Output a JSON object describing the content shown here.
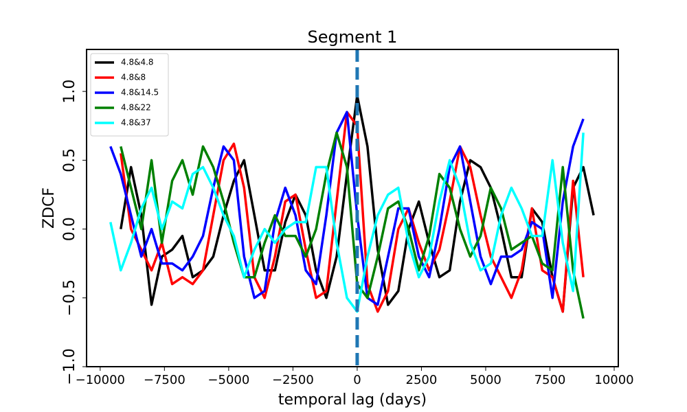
{
  "chart_data": {
    "type": "line",
    "title": "Segment 1",
    "xlabel": "temporal lag (days)",
    "ylabel": "ZDCF",
    "x": [
      -9600,
      -9200,
      -8800,
      -8400,
      -8000,
      -7600,
      -7200,
      -6800,
      -6400,
      -6000,
      -5600,
      -5200,
      -4800,
      -4400,
      -4000,
      -3600,
      -3200,
      -2800,
      -2400,
      -2000,
      -1600,
      -1200,
      -800,
      -400,
      0,
      400,
      800,
      1200,
      1600,
      2000,
      2400,
      2800,
      3200,
      3600,
      4000,
      4400,
      4800,
      5200,
      5600,
      6000,
      6400,
      6800,
      7200,
      7600,
      8000,
      8400,
      8800,
      9200
    ],
    "series": [
      {
        "name": "4.8&4.8",
        "color": "#000000",
        "values": [
          null,
          0.0,
          0.45,
          0.1,
          -0.55,
          -0.2,
          -0.15,
          -0.05,
          -0.35,
          -0.3,
          -0.2,
          0.1,
          0.35,
          0.5,
          0.1,
          -0.3,
          -0.3,
          0.05,
          0.25,
          0.1,
          -0.3,
          -0.5,
          -0.2,
          0.4,
          0.97,
          0.6,
          -0.15,
          -0.55,
          -0.45,
          0.0,
          0.2,
          -0.1,
          -0.35,
          -0.3,
          0.2,
          0.5,
          0.45,
          0.3,
          0.0,
          -0.35,
          -0.35,
          0.15,
          0.05,
          -0.35,
          -0.6,
          0.3,
          0.45,
          0.1
        ]
      },
      {
        "name": "4.8&8",
        "color": "#ff0000",
        "values": [
          null,
          0.55,
          0.0,
          -0.15,
          -0.3,
          -0.1,
          -0.4,
          -0.35,
          -0.4,
          -0.3,
          0.1,
          0.5,
          0.62,
          0.3,
          -0.35,
          -0.5,
          -0.2,
          0.2,
          0.25,
          -0.15,
          -0.5,
          -0.45,
          0.2,
          0.85,
          0.75,
          -0.4,
          -0.6,
          -0.45,
          0.0,
          0.15,
          -0.1,
          -0.3,
          -0.15,
          0.2,
          0.6,
          0.45,
          0.1,
          -0.2,
          -0.35,
          -0.5,
          -0.3,
          0.15,
          -0.3,
          -0.35,
          -0.6,
          0.35,
          -0.35,
          null
        ]
      },
      {
        "name": "4.8&14.5",
        "color": "#0000ff",
        "values": [
          0.6,
          0.4,
          0.1,
          -0.2,
          0.0,
          -0.25,
          -0.25,
          -0.3,
          -0.2,
          -0.05,
          0.3,
          0.6,
          0.5,
          -0.2,
          -0.5,
          -0.45,
          0.05,
          0.3,
          0.1,
          -0.3,
          -0.4,
          0.1,
          0.7,
          0.85,
          0.1,
          -0.5,
          -0.55,
          -0.2,
          0.15,
          0.15,
          -0.2,
          -0.35,
          0.0,
          0.45,
          0.6,
          0.2,
          -0.2,
          -0.4,
          -0.2,
          -0.2,
          -0.15,
          0.05,
          0.0,
          -0.5,
          0.2,
          0.6,
          0.8,
          null
        ]
      },
      {
        "name": "4.8&22",
        "color": "#008000",
        "values": [
          null,
          0.6,
          0.3,
          0.0,
          0.5,
          -0.1,
          0.35,
          0.5,
          0.25,
          0.6,
          0.45,
          0.2,
          -0.1,
          -0.35,
          -0.35,
          -0.1,
          0.1,
          -0.05,
          -0.05,
          -0.2,
          0.0,
          0.4,
          0.7,
          0.45,
          -0.4,
          -0.5,
          -0.2,
          0.15,
          0.2,
          0.0,
          -0.3,
          -0.05,
          0.4,
          0.3,
          0.0,
          -0.2,
          -0.05,
          0.3,
          0.15,
          -0.15,
          -0.1,
          -0.05,
          -0.25,
          -0.3,
          0.45,
          -0.3,
          -0.65,
          null
        ]
      },
      {
        "name": "4.8&37",
        "color": "#00ffff",
        "values": [
          0.05,
          -0.3,
          -0.1,
          0.15,
          0.3,
          0.0,
          0.2,
          0.15,
          0.4,
          0.45,
          0.3,
          0.1,
          -0.05,
          -0.35,
          -0.15,
          0.0,
          -0.1,
          0.0,
          0.05,
          0.05,
          0.45,
          0.45,
          -0.1,
          -0.5,
          -0.6,
          -0.2,
          0.1,
          0.25,
          0.3,
          -0.1,
          -0.35,
          -0.2,
          0.2,
          0.5,
          0.3,
          -0.1,
          -0.3,
          -0.25,
          0.1,
          0.3,
          0.15,
          -0.05,
          -0.05,
          0.5,
          -0.1,
          -0.45,
          0.7,
          null
        ]
      }
    ],
    "vline": 0,
    "vline_color": "#1f77b4",
    "xlim": [
      -10530,
      10160
    ],
    "ylim": [
      -1.0,
      1.305
    ],
    "xticks": [
      {
        "value": -10000,
        "label": "−10000"
      },
      {
        "value": -7500,
        "label": "−7500"
      },
      {
        "value": -5000,
        "label": "−5000"
      },
      {
        "value": -2500,
        "label": "−2500"
      },
      0,
      2500,
      5000,
      7500,
      10000
    ],
    "yticks": [
      {
        "value": -1.0,
        "label": "−1.0"
      },
      {
        "value": -0.5,
        "label": "−0.5"
      },
      {
        "value": 0,
        "label": "0.0"
      },
      {
        "value": 0.5,
        "label": "0.5"
      },
      {
        "value": 1.0,
        "label": "1.0"
      }
    ],
    "legend": "upper left",
    "grid": false
  }
}
